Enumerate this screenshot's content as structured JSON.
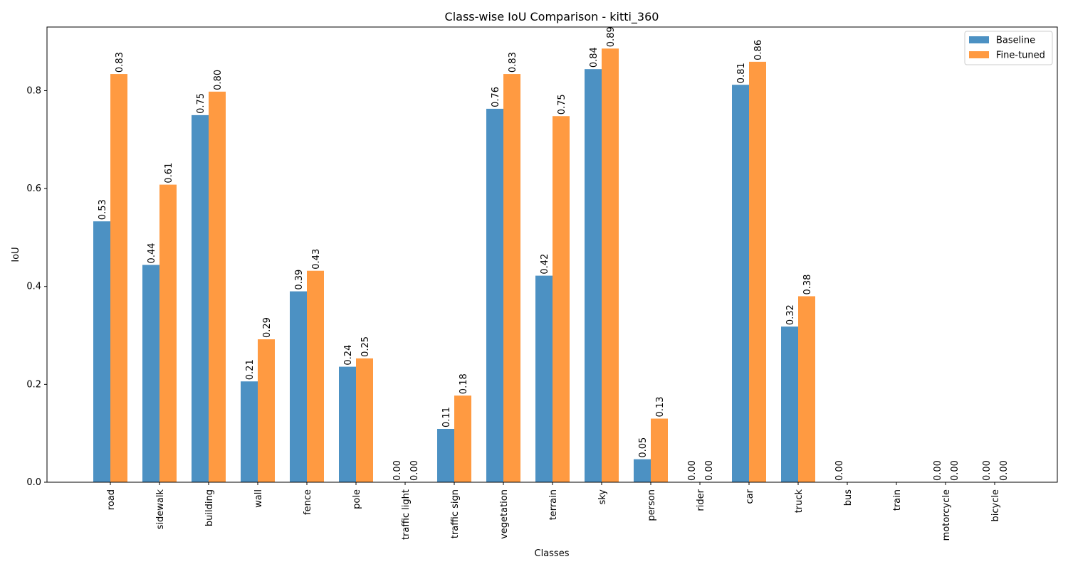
{
  "chart_data": {
    "type": "bar",
    "title": "Class-wise IoU Comparison - kitti_360",
    "xlabel": "Classes",
    "ylabel": "IoU",
    "ylim": [
      0,
      0.93
    ],
    "yticks": [
      0.0,
      0.2,
      0.4,
      0.6,
      0.8
    ],
    "ytick_labels": [
      "0.0",
      "0.2",
      "0.4",
      "0.6",
      "0.8"
    ],
    "grid": false,
    "legend_position": "top-right",
    "categories": [
      "road",
      "sidewalk",
      "building",
      "wall",
      "fence",
      "pole",
      "traffic light",
      "traffic sign",
      "vegetation",
      "terrain",
      "sky",
      "person",
      "rider",
      "car",
      "truck",
      "bus",
      "train",
      "motorcycle",
      "bicycle"
    ],
    "series": [
      {
        "name": "Baseline",
        "color": "#4c91c3",
        "values": [
          0.533,
          0.444,
          0.75,
          0.206,
          0.39,
          0.236,
          0.0,
          0.109,
          0.763,
          0.422,
          0.844,
          0.047,
          0.0,
          0.812,
          0.318,
          0.0,
          null,
          0.0,
          0.0
        ],
        "labels": [
          "0.53",
          "0.44",
          "0.75",
          "0.21",
          "0.39",
          "0.24",
          "0.00",
          "0.11",
          "0.76",
          "0.42",
          "0.84",
          "0.05",
          "0.00",
          "0.81",
          "0.32",
          "0.00",
          "",
          "0.00",
          "0.00"
        ]
      },
      {
        "name": "Fine-tuned",
        "color": "#ff9a41",
        "values": [
          0.834,
          0.608,
          0.798,
          0.292,
          0.432,
          0.253,
          0.0,
          0.177,
          0.834,
          0.748,
          0.886,
          0.13,
          0.0,
          0.859,
          0.38,
          null,
          null,
          0.0,
          0.0
        ],
        "labels": [
          "0.83",
          "0.61",
          "0.80",
          "0.29",
          "0.43",
          "0.25",
          "0.00",
          "0.18",
          "0.83",
          "0.75",
          "0.89",
          "0.13",
          "0.00",
          "0.86",
          "0.38",
          "",
          "",
          "0.00",
          "0.00"
        ]
      }
    ]
  }
}
